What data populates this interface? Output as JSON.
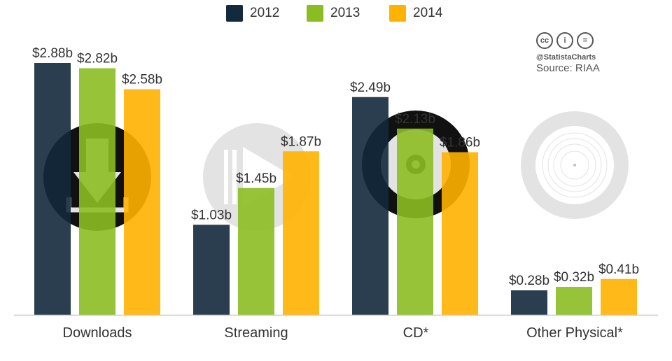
{
  "chart_data": {
    "type": "bar",
    "title": "",
    "xlabel": "",
    "ylabel": "",
    "ylim": [
      0,
      3.0
    ],
    "grid": false,
    "legend_position": "top-center",
    "categories": [
      "Downloads",
      "Streaming",
      "CD*",
      "Other Physical*"
    ],
    "series": [
      {
        "name": "2012",
        "color": "#13293d",
        "values": [
          2.88,
          1.03,
          2.49,
          0.28
        ],
        "labels": [
          "$2.88b",
          "$1.03b",
          "$2.49b",
          "$0.28b"
        ]
      },
      {
        "name": "2013",
        "color": "#8bbc21",
        "values": [
          2.82,
          1.45,
          2.13,
          0.32
        ],
        "labels": [
          "$2.82b",
          "$1.45b",
          "$2.13b",
          "$0.32b"
        ]
      },
      {
        "name": "2014",
        "color": "#ffb300",
        "values": [
          2.58,
          1.87,
          1.86,
          0.41
        ],
        "labels": [
          "$2.58b",
          "$1.87b",
          "$1.86b",
          "$0.41b"
        ]
      }
    ],
    "category_icons": [
      "download-icon",
      "play-icon",
      "cd-icon",
      "vinyl-record-icon"
    ]
  },
  "credits": {
    "license_icons": [
      "cc-icon",
      "person-icon",
      "equals-icon"
    ],
    "license_glyphs": [
      "cc",
      "i",
      "="
    ],
    "handle": "@StatistaCharts",
    "source": "Source: RIAA"
  },
  "colors": {
    "text": "#333333",
    "axis": "#c8c8c8",
    "icon_dark": "#111111",
    "icon_light": "#e3e3e3"
  }
}
